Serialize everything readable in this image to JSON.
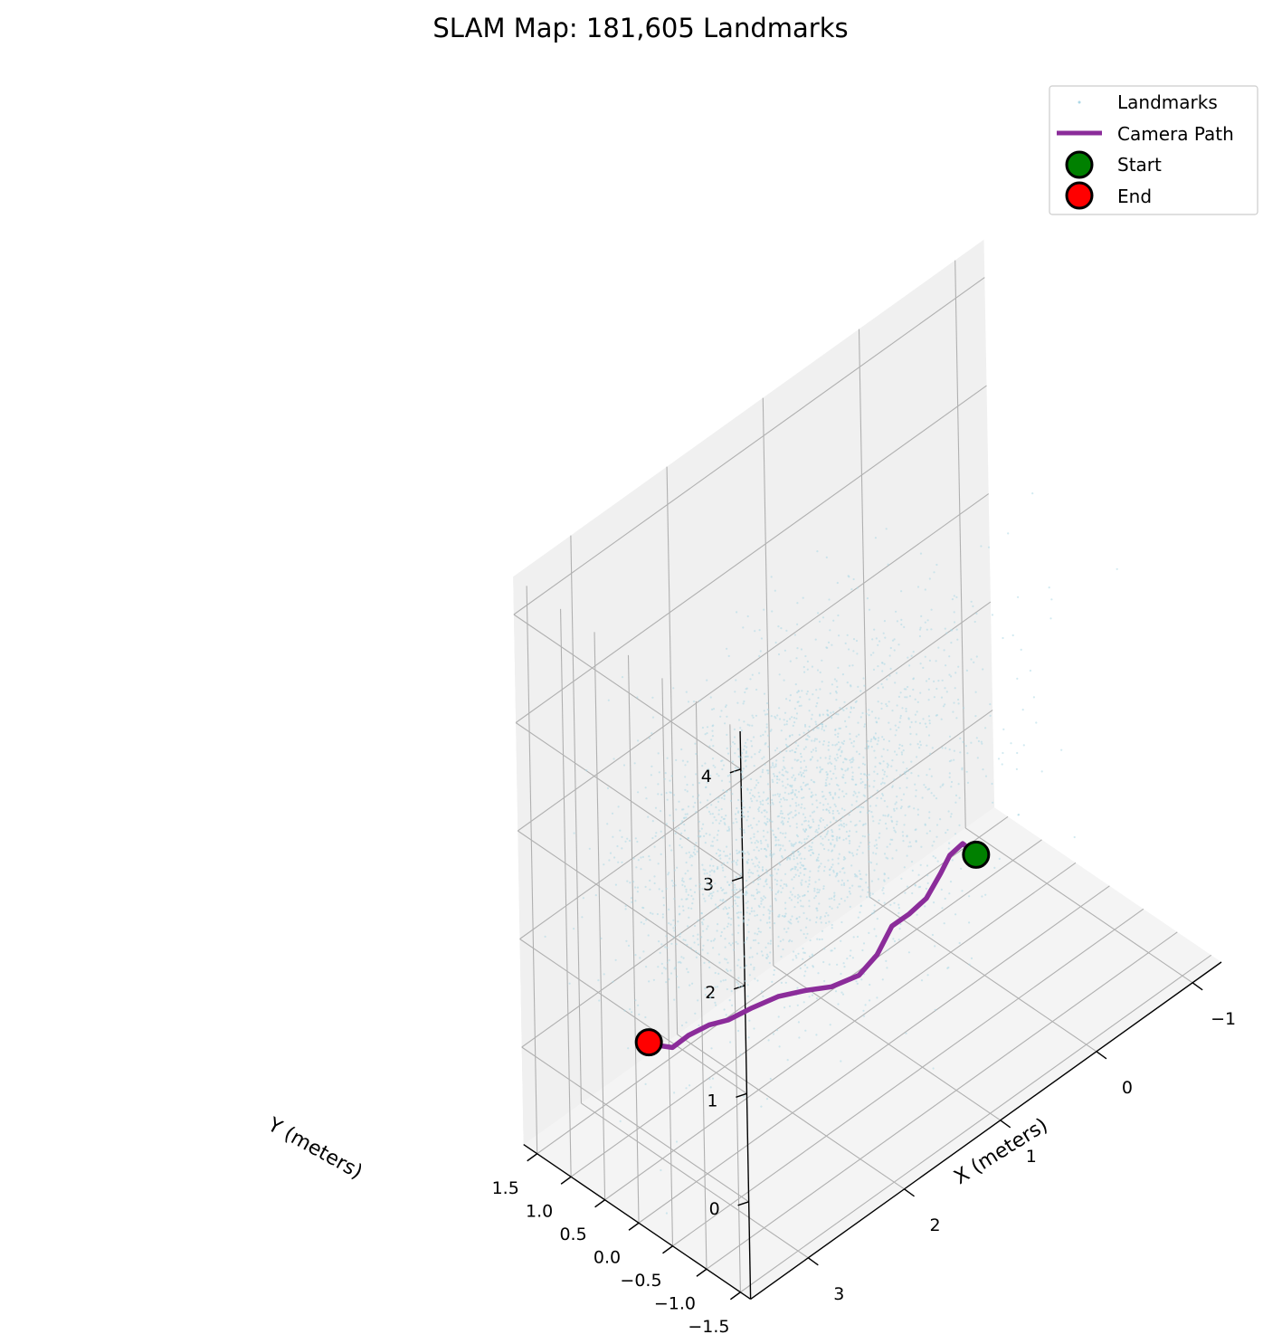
{
  "chart_data": {
    "type": "scatter",
    "subtype": "3d-scatter-with-path",
    "title": "SLAM Map: 181,605 Landmarks",
    "xlabel": "X (meters)",
    "ylabel": "Y (meters)",
    "zlabel": "",
    "x_ticks": [
      "−1",
      "0",
      "1",
      "2",
      "3"
    ],
    "y_ticks": [
      "−1.5",
      "−1.0",
      "−0.5",
      "0.0",
      "0.5",
      "1.0",
      "1.5"
    ],
    "z_ticks": [
      "0",
      "1",
      "2",
      "3",
      "4"
    ],
    "xlim": [
      -1.3,
      3.6
    ],
    "ylim": [
      -1.65,
      1.7
    ],
    "zlim": [
      -0.9,
      4.35
    ],
    "grid": true,
    "legend_position": "top-right",
    "colors": {
      "landmarks": "#add8e6",
      "path": "#8b2c9a",
      "start": "#008000",
      "end": "#ff0000",
      "pane_back": "#eeeeee",
      "pane_side": "#f0f0f0",
      "pane_floor": "#f4f4f4",
      "grid": "#b0b0b0"
    },
    "legend": [
      {
        "label": "Landmarks",
        "kind": "point",
        "color": "#add8e6"
      },
      {
        "label": "Camera Path",
        "kind": "line",
        "color": "#8b2c9a"
      },
      {
        "label": "Start",
        "kind": "marker",
        "color": "#008000"
      },
      {
        "label": "End",
        "kind": "marker",
        "color": "#ff0000"
      }
    ],
    "landmark_cloud": {
      "count_label": "181,605",
      "center": [
        1.5,
        0.6,
        1.2
      ],
      "spread": [
        0.8,
        0.6,
        0.7
      ]
    },
    "camera_path": [
      [
        0.1,
        -0.05,
        0.3
      ],
      [
        0.18,
        0.03,
        0.42
      ],
      [
        0.3,
        0.05,
        0.38
      ],
      [
        0.42,
        0.02,
        0.3
      ],
      [
        0.55,
        0.05,
        0.14
      ],
      [
        0.68,
        0.12,
        0.05
      ],
      [
        0.82,
        0.18,
        0.0
      ],
      [
        0.95,
        0.22,
        -0.2
      ],
      [
        1.1,
        0.28,
        -0.32
      ],
      [
        1.3,
        0.4,
        -0.35
      ],
      [
        1.5,
        0.5,
        -0.3
      ],
      [
        1.7,
        0.62,
        -0.28
      ],
      [
        1.9,
        0.72,
        -0.3
      ],
      [
        2.08,
        0.82,
        -0.34
      ],
      [
        2.22,
        0.9,
        -0.33
      ],
      [
        2.38,
        0.98,
        -0.36
      ],
      [
        2.52,
        1.02,
        -0.4
      ],
      [
        2.62,
        1.04,
        -0.33
      ],
      [
        2.72,
        1.08,
        -0.25
      ]
    ],
    "start_point": [
      0.1,
      -0.05,
      0.3
    ],
    "end_point": [
      2.72,
      1.08,
      -0.25
    ]
  }
}
